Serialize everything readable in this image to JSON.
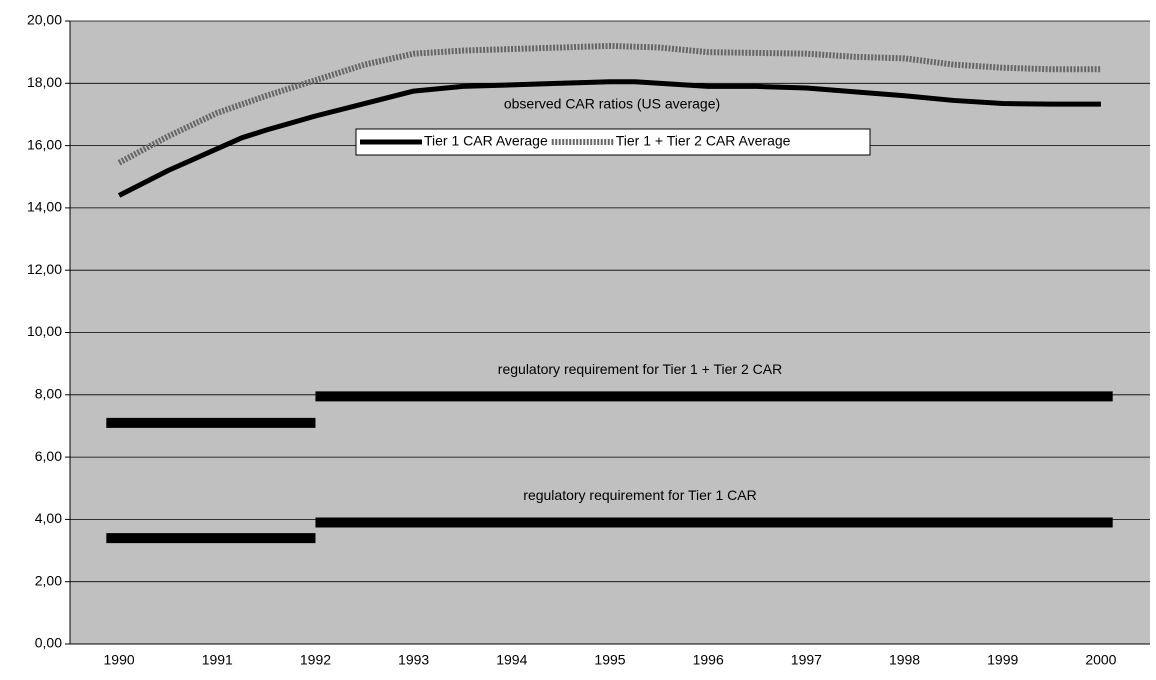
{
  "chart_data": {
    "type": "line",
    "annotation": "observed  CAR ratios (US average)",
    "xlim": [
      1989.5,
      2000.5
    ],
    "xticks": [
      1990,
      1991,
      1992,
      1993,
      1994,
      1995,
      1996,
      1997,
      1998,
      1999,
      2000
    ],
    "ylim": [
      0,
      20
    ],
    "yticks": [
      {
        "value": 0,
        "label": "0,00"
      },
      {
        "value": 2,
        "label": "2,00"
      },
      {
        "value": 4,
        "label": "4,00"
      },
      {
        "value": 6,
        "label": "6,00"
      },
      {
        "value": 8,
        "label": "8,00"
      },
      {
        "value": 10,
        "label": "10,00"
      },
      {
        "value": 12,
        "label": "12,00"
      },
      {
        "value": 14,
        "label": "14,00"
      },
      {
        "value": 16,
        "label": "16,00"
      },
      {
        "value": 18,
        "label": "18,00"
      },
      {
        "value": 20,
        "label": "20,00"
      }
    ],
    "grid": true,
    "background": "#c0c0c0",
    "series": [
      {
        "name": "Tier 1 CAR Average",
        "color": "#000000",
        "x": [
          1990,
          1990.5,
          1991,
          1991.25,
          1991.5,
          1992,
          1992.5,
          1993,
          1993.5,
          1994,
          1994.5,
          1995,
          1995.25,
          1996,
          1996.5,
          1997,
          1998,
          1998.5,
          1999,
          1999.5,
          2000
        ],
        "values": [
          14.4,
          15.2,
          15.9,
          16.25,
          16.5,
          16.95,
          17.35,
          17.75,
          17.9,
          17.95,
          18.0,
          18.05,
          18.05,
          17.9,
          17.9,
          17.85,
          17.6,
          17.45,
          17.35,
          17.33,
          17.33
        ]
      },
      {
        "name": "Tier 1 + Tier 2 CAR Average",
        "color": "#666666",
        "x": [
          1990,
          1990.5,
          1991,
          1991.5,
          1992,
          1992.5,
          1993,
          1993.5,
          1994,
          1994.5,
          1995,
          1995.5,
          1996,
          1997,
          1997.5,
          1998,
          1998.5,
          1999,
          1999.5,
          2000
        ],
        "values": [
          15.45,
          16.3,
          17.05,
          17.6,
          18.1,
          18.6,
          18.95,
          19.05,
          19.1,
          19.15,
          19.2,
          19.15,
          19.0,
          18.95,
          18.85,
          18.8,
          18.6,
          18.5,
          18.45,
          18.45
        ]
      }
    ],
    "requirements": [
      {
        "label": "regulatory requirement for Tier 1 + Tier 2 CAR",
        "color": "#000000",
        "x": [
          1989.87,
          1992,
          1992,
          1992,
          2000.12
        ],
        "values": [
          7.1,
          7.1,
          null,
          7.95,
          7.95
        ]
      },
      {
        "label": "regulatory requirement for Tier 1 CAR",
        "color": "#000000",
        "x": [
          1989.87,
          1992,
          1992,
          1992,
          2000.12
        ],
        "values": [
          3.4,
          3.4,
          null,
          3.9,
          3.9
        ]
      }
    ]
  }
}
